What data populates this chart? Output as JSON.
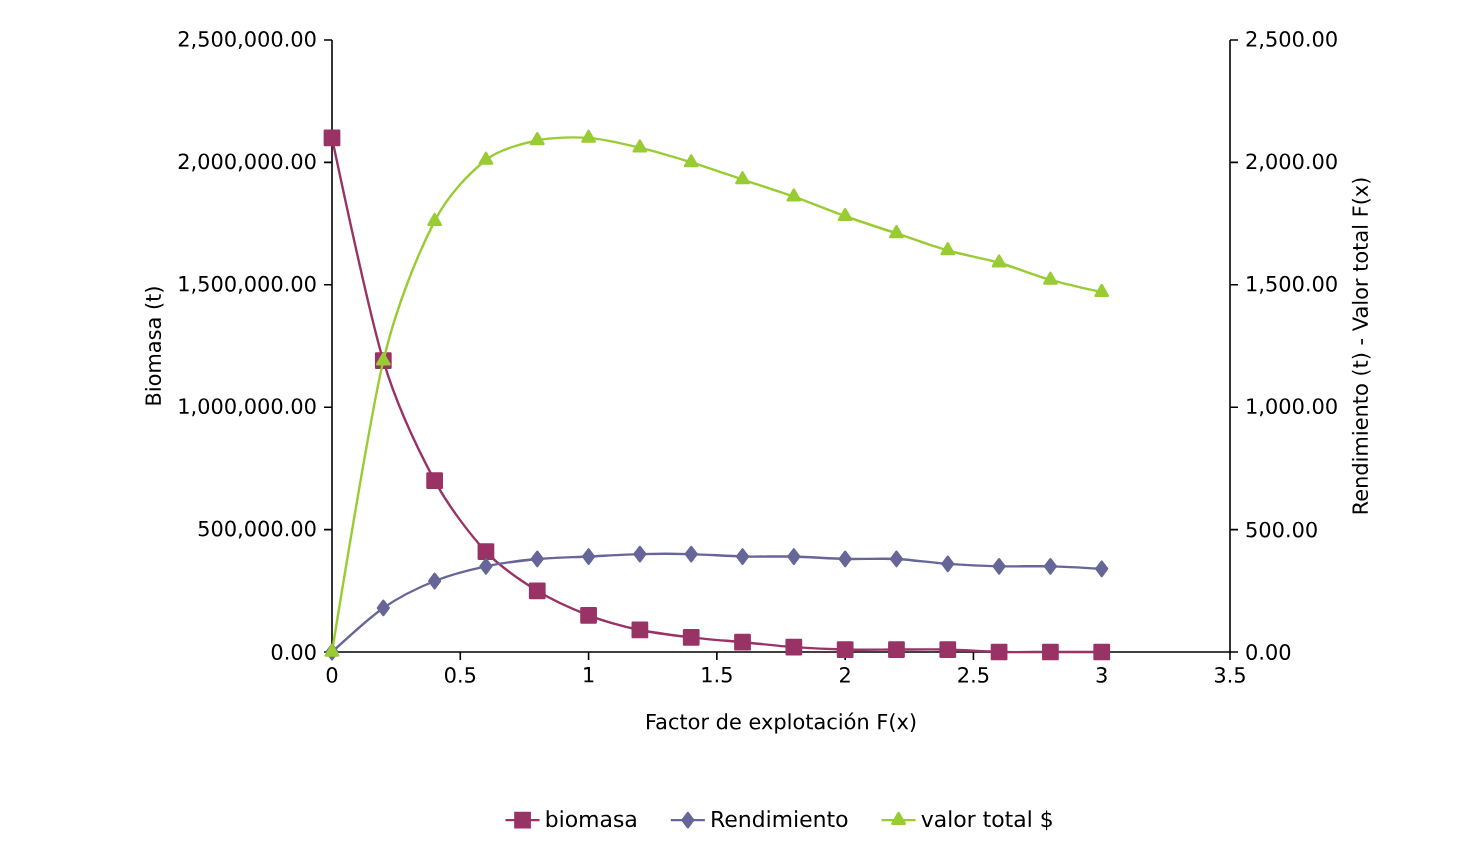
{
  "chart_data": {
    "type": "line",
    "xlabel": "Factor de explotación F(x)",
    "ylabel": "Biomasa (t)",
    "y2label": "Rendimiento (t) - Valor total F(x)",
    "x": [
      0,
      0.2,
      0.4,
      0.6,
      0.8,
      1.0,
      1.2,
      1.4,
      1.6,
      1.8,
      2.0,
      2.2,
      2.4,
      2.6,
      2.8,
      3.0
    ],
    "series": [
      {
        "name": "biomasa",
        "color": "#993366",
        "marker": "square",
        "values": [
          2100000,
          1190000,
          700000,
          410000,
          250000,
          150000,
          90000,
          60000,
          40000,
          20000,
          10000,
          10000,
          10000,
          0,
          0,
          0
        ]
      },
      {
        "name": "Rendimiento",
        "color": "#666699",
        "marker": "diamond",
        "axis": "y2",
        "values": [
          0,
          180,
          290,
          350,
          380,
          390,
          400,
          400,
          390,
          390,
          380,
          380,
          360,
          350,
          350,
          340
        ]
      },
      {
        "name": "valor total $",
        "color": "#99cc33",
        "marker": "triangle",
        "axis": "y2",
        "values": [
          0,
          1190,
          1760,
          2010,
          2090,
          2100,
          2060,
          2000,
          1930,
          1860,
          1780,
          1710,
          1640,
          1590,
          1520,
          1470
        ]
      }
    ],
    "xlim": [
      0,
      3.5
    ],
    "xticks": [
      0,
      0.5,
      1,
      1.5,
      2,
      2.5,
      3,
      3.5
    ],
    "ylim": [
      0,
      2500000
    ],
    "yticks": [
      {
        "value": 0,
        "label": "0.00"
      },
      {
        "value": 500000,
        "label": "500,000.00"
      },
      {
        "value": 1000000,
        "label": "1,000,000.00"
      },
      {
        "value": 1500000,
        "label": "1,500,000.00"
      },
      {
        "value": 2000000,
        "label": "2,000,000.00"
      },
      {
        "value": 2500000,
        "label": "2,500,000.00"
      }
    ],
    "y2lim": [
      0,
      2500
    ],
    "y2ticks": [
      {
        "value": 0,
        "label": "0.00"
      },
      {
        "value": 500,
        "label": "500.00"
      },
      {
        "value": 1000,
        "label": "1,000.00"
      },
      {
        "value": 1500,
        "label": "1,500.00"
      },
      {
        "value": 2000,
        "label": "2,000.00"
      },
      {
        "value": 2500,
        "label": "2,500.00"
      }
    ],
    "legend": "bottom",
    "grid": false,
    "line_style": "solid"
  }
}
